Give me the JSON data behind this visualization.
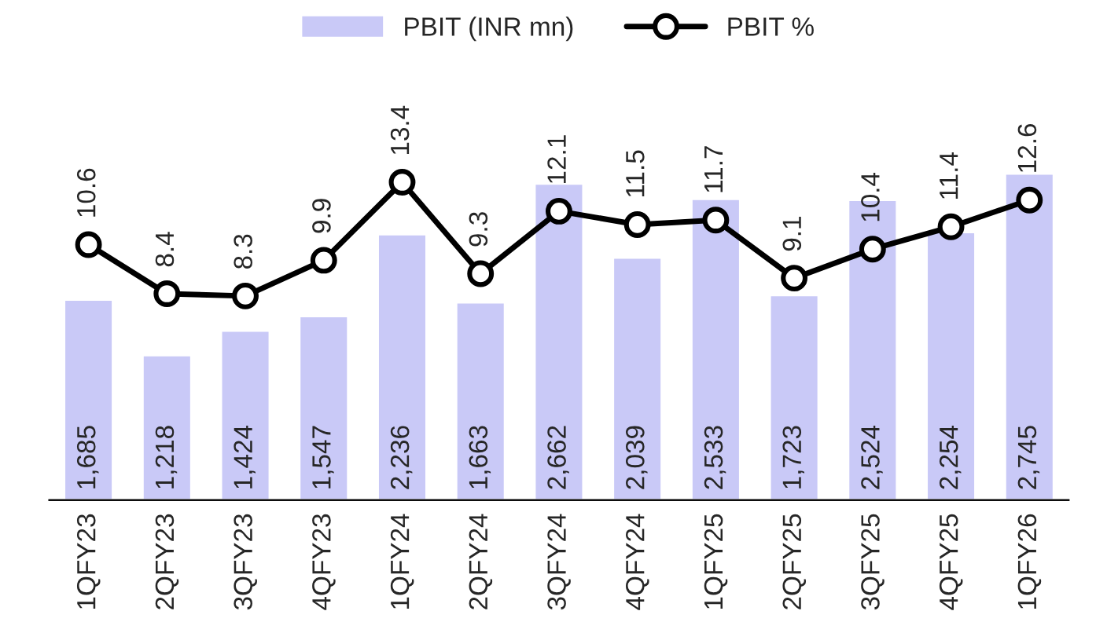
{
  "chart_data": {
    "type": "bar",
    "categories": [
      "1QFY23",
      "2QFY23",
      "3QFY23",
      "4QFY23",
      "1QFY24",
      "2QFY24",
      "3QFY24",
      "4QFY24",
      "1QFY25",
      "2QFY25",
      "3QFY25",
      "4QFY25",
      "1QFY26"
    ],
    "series": [
      {
        "name": "PBIT (INR mn)",
        "color": "#c9c9f7",
        "values": [
          1685,
          1218,
          1424,
          1547,
          2236,
          1663,
          2662,
          2039,
          2533,
          1723,
          2524,
          2254,
          2745
        ],
        "value_labels": [
          "1,685",
          "1,218",
          "1,424",
          "1,547",
          "2,236",
          "1,663",
          "2,662",
          "2,039",
          "2,533",
          "1,723",
          "2,524",
          "2,254",
          "2,745"
        ]
      },
      {
        "name": "PBIT %",
        "type": "line",
        "axis": "y2",
        "color": "#000000",
        "marker": "circle",
        "values": [
          10.6,
          8.4,
          8.3,
          9.9,
          13.4,
          9.3,
          12.1,
          11.5,
          11.7,
          9.1,
          10.4,
          11.4,
          12.6
        ],
        "value_labels": [
          "10.6",
          "8.4",
          "8.3",
          "9.9",
          "13.4",
          "9.3",
          "12.1",
          "11.5",
          "11.7",
          "9.1",
          "10.4",
          "11.4",
          "12.6"
        ]
      }
    ],
    "ylim": [
      0,
      4100
    ],
    "y2lim": [
      -0.85,
      21
    ],
    "tick_labels": "x",
    "legend": "top",
    "grid": false
  }
}
